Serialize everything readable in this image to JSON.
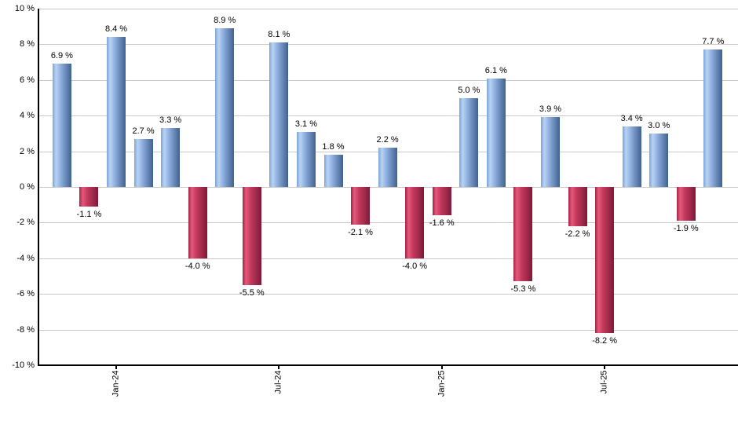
{
  "chart_data": {
    "type": "bar",
    "title": "",
    "xlabel": "",
    "ylabel": "",
    "ylim": [
      -10,
      10
    ],
    "y_step": 2,
    "grid": "horizontal",
    "legend": "none",
    "values": [
      6.9,
      -1.1,
      8.4,
      2.7,
      3.3,
      -4.0,
      8.9,
      -5.5,
      8.1,
      3.1,
      1.8,
      -2.1,
      2.2,
      -4.0,
      -1.6,
      5.0,
      6.1,
      -5.3,
      3.9,
      -2.2,
      -8.2,
      3.4,
      3.0,
      -1.9,
      7.7
    ],
    "bar_labels": [
      "6.9 %",
      "-1.1 %",
      "8.4 %",
      "2.7 %",
      "3.3 %",
      "-4.0 %",
      "8.9 %",
      "-5.5 %",
      "8.1 %",
      "3.1 %",
      "1.8 %",
      "-2.1 %",
      "2.2 %",
      "-4.0 %",
      "-1.6 %",
      "5.0 %",
      "6.1 %",
      "-5.3 %",
      "3.9 %",
      "-2.2 %",
      "-8.2 %",
      "3.4 %",
      "3.0 %",
      "-1.9 %",
      "7.7 %"
    ],
    "x_ticks": [
      {
        "index": 2,
        "label": "Jan-24"
      },
      {
        "index": 8,
        "label": "Jul-24"
      },
      {
        "index": 14,
        "label": "Jan-25"
      },
      {
        "index": 20,
        "label": "Jul-25"
      }
    ],
    "y_tick_labels": [
      "10 %",
      "8 %",
      "6 %",
      "4 %",
      "2 %",
      "0 %",
      "-2 %",
      "-4 %",
      "-6 %",
      "-8 %",
      "-10 %"
    ],
    "colors": {
      "positive_edge_left": "#7ca3d6",
      "positive_highlight": "#b9d3f2",
      "positive_mid": "#8fb0e0",
      "positive_edge_right": "#41618f",
      "negative_edge_left": "#a02344",
      "negative_highlight": "#e5597b",
      "negative_mid": "#c43a5e",
      "negative_edge_right": "#7e1b37",
      "gridline": "#c8c8c8",
      "axis": "#000000",
      "background": "#ffffff"
    }
  }
}
